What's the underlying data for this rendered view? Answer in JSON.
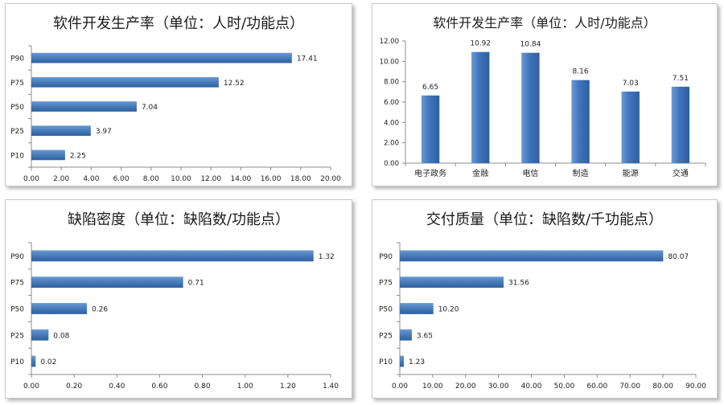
{
  "chart_data": [
    {
      "type": "bar",
      "orientation": "horizontal",
      "title": "软件开发生产率（单位：人时/功能点）",
      "categories": [
        "P90",
        "P75",
        "P50",
        "P25",
        "P10"
      ],
      "values": [
        17.41,
        12.52,
        7.04,
        3.97,
        2.25
      ],
      "value_labels": [
        "17.41",
        "12.52",
        "7.04",
        "3.97",
        "2.25"
      ],
      "xlim": [
        0,
        20
      ],
      "ticks": [
        "0.00",
        "2.00",
        "4.00",
        "6.00",
        "8.00",
        "10.00",
        "12.00",
        "14.00",
        "16.00",
        "18.00",
        "20.00"
      ],
      "bar_color": "#4a7ebb"
    },
    {
      "type": "bar",
      "orientation": "vertical",
      "title": "软件开发生产率（单位：人时/功能点）",
      "categories": [
        "电子政务",
        "金融",
        "电信",
        "制造",
        "能源",
        "交通"
      ],
      "values": [
        6.65,
        10.92,
        10.84,
        8.16,
        7.03,
        7.51
      ],
      "value_labels": [
        "6.65",
        "10.92",
        "10.84",
        "8.16",
        "7.03",
        "7.51"
      ],
      "ylim": [
        0,
        12
      ],
      "ticks": [
        "0.00",
        "2.00",
        "4.00",
        "6.00",
        "8.00",
        "10.00",
        "12.00"
      ],
      "bar_color": "#3f74bc"
    },
    {
      "type": "bar",
      "orientation": "horizontal",
      "title": "缺陷密度（单位：缺陷数/功能点）",
      "categories": [
        "P90",
        "P75",
        "P50",
        "P25",
        "P10"
      ],
      "values": [
        1.32,
        0.71,
        0.26,
        0.08,
        0.02
      ],
      "value_labels": [
        "1.32",
        "0.71",
        "0.26",
        "0.08",
        "0.02"
      ],
      "xlim": [
        0,
        1.4
      ],
      "ticks": [
        "0.00",
        "0.20",
        "0.40",
        "0.60",
        "0.80",
        "1.00",
        "1.20",
        "1.40"
      ],
      "bar_color": "#4a7ebb"
    },
    {
      "type": "bar",
      "orientation": "horizontal",
      "title": "交付质量（单位：缺陷数/千功能点）",
      "categories": [
        "P90",
        "P75",
        "P50",
        "P25",
        "P10"
      ],
      "values": [
        80.07,
        31.56,
        10.2,
        3.65,
        1.23
      ],
      "value_labels": [
        "80.07",
        "31.56",
        "10.20",
        "3.65",
        "1.23"
      ],
      "xlim": [
        0,
        90
      ],
      "ticks": [
        "0.00",
        "10.00",
        "20.00",
        "30.00",
        "40.00",
        "50.00",
        "60.00",
        "70.00",
        "80.00",
        "90.00"
      ],
      "bar_color": "#4a7ebb"
    }
  ]
}
